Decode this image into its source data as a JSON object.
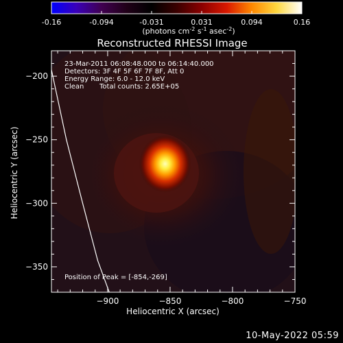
{
  "colorbar": {
    "ticks": [
      "-0.16",
      "-0.094",
      "-0.031",
      "0.031",
      "0.094",
      "0.16"
    ],
    "units_parts": {
      "a": "(photons cm",
      "sup1": "-2",
      "b": " s",
      "sup2": "-1",
      "c": " asec",
      "sup3": "-2",
      "d": ")"
    },
    "stops": [
      "#0000ff",
      "#3a00b8",
      "#400050",
      "#200018",
      "#000000",
      "#3a0000",
      "#8a0000",
      "#d81800",
      "#ff8800",
      "#ffd840",
      "#ffffff"
    ]
  },
  "chart_data": {
    "type": "heatmap",
    "title": "Reconstructed RHESSI Image",
    "xlabel": "Heliocentric X (arcsec)",
    "ylabel": "Heliocentric Y (arcsec)",
    "xlim": [
      -945,
      -750
    ],
    "ylim": [
      -370,
      -180
    ],
    "xticks": [
      -900,
      -850,
      -800,
      -750
    ],
    "yticks": [
      -200,
      -250,
      -300,
      -350
    ],
    "clim": [
      -0.16,
      0.16
    ],
    "peak": {
      "x": -854,
      "y": -269,
      "value": 0.16
    },
    "annotations": {
      "time": "23-Mar-2011 06:08:48.000 to 06:14:40.000",
      "detectors": "Detectors: 3F 4F 5F 6F 7F 8F, Att 0",
      "energy": "Energy Range: 6.0 - 12.0 keV",
      "method": "Clean",
      "counts": "Total counts: 2.65E+05",
      "peak_label": "Position of Peak = [-854,-269]"
    },
    "limb_line": [
      [
        -945,
        -195
      ],
      [
        -933,
        -250
      ],
      [
        -920,
        -300
      ],
      [
        -908,
        -345
      ],
      [
        -895,
        -380
      ]
    ]
  },
  "footer": {
    "timestamp": "10-May-2022 05:59"
  }
}
